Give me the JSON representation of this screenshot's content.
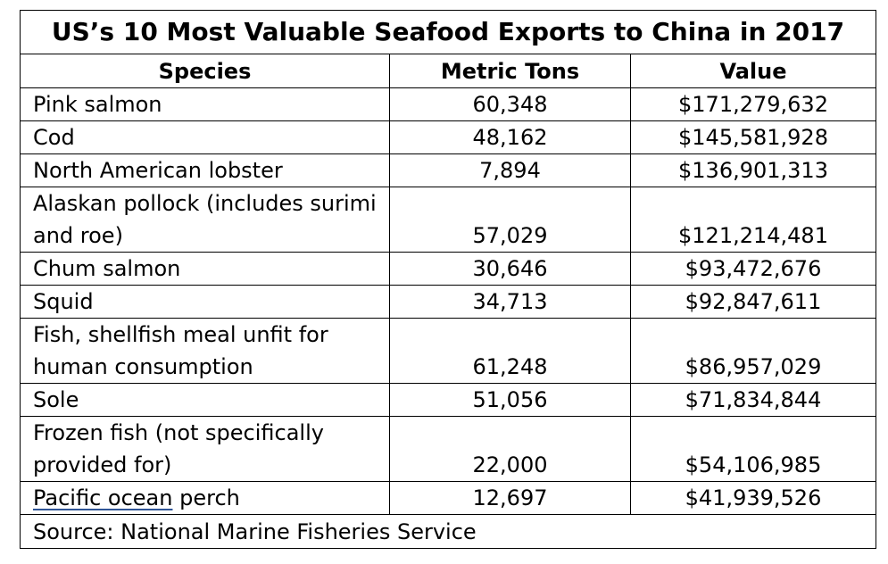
{
  "title": "US’s 10 Most Valuable Seafood Exports to China in 2017",
  "columns": {
    "species": "Species",
    "tons": "Metric Tons",
    "value": "Value"
  },
  "rows": [
    {
      "species": "Pink salmon",
      "tons": "60,348",
      "value": "$171,279,632"
    },
    {
      "species": "Cod",
      "tons": "48,162",
      "value": "$145,581,928"
    },
    {
      "species": "North American lobster",
      "tons": "7,894",
      "value": "$136,901,313"
    },
    {
      "species": "Alaskan pollock (includes surimi and roe)",
      "tons": "57,029",
      "value": "$121,214,481"
    },
    {
      "species": "Chum salmon",
      "tons": "30,646",
      "value": "$93,472,676"
    },
    {
      "species": "Squid",
      "tons": "34,713",
      "value": "$92,847,611"
    },
    {
      "species": "Fish, shellfish meal unfit for human consumption",
      "tons": "61,248",
      "value": "$86,957,029"
    },
    {
      "species": "Sole",
      "tons": "51,056",
      "value": "$71,834,844"
    },
    {
      "species": "Frozen fish (not specifically provided for)",
      "tons": "22,000",
      "value": "$54,106,985"
    },
    {
      "species_underlined": "Pacific ocean",
      "species_rest": " perch",
      "tons": "12,697",
      "value": "$41,939,526"
    }
  ],
  "source": "Source: National Marine Fisheries Service"
}
